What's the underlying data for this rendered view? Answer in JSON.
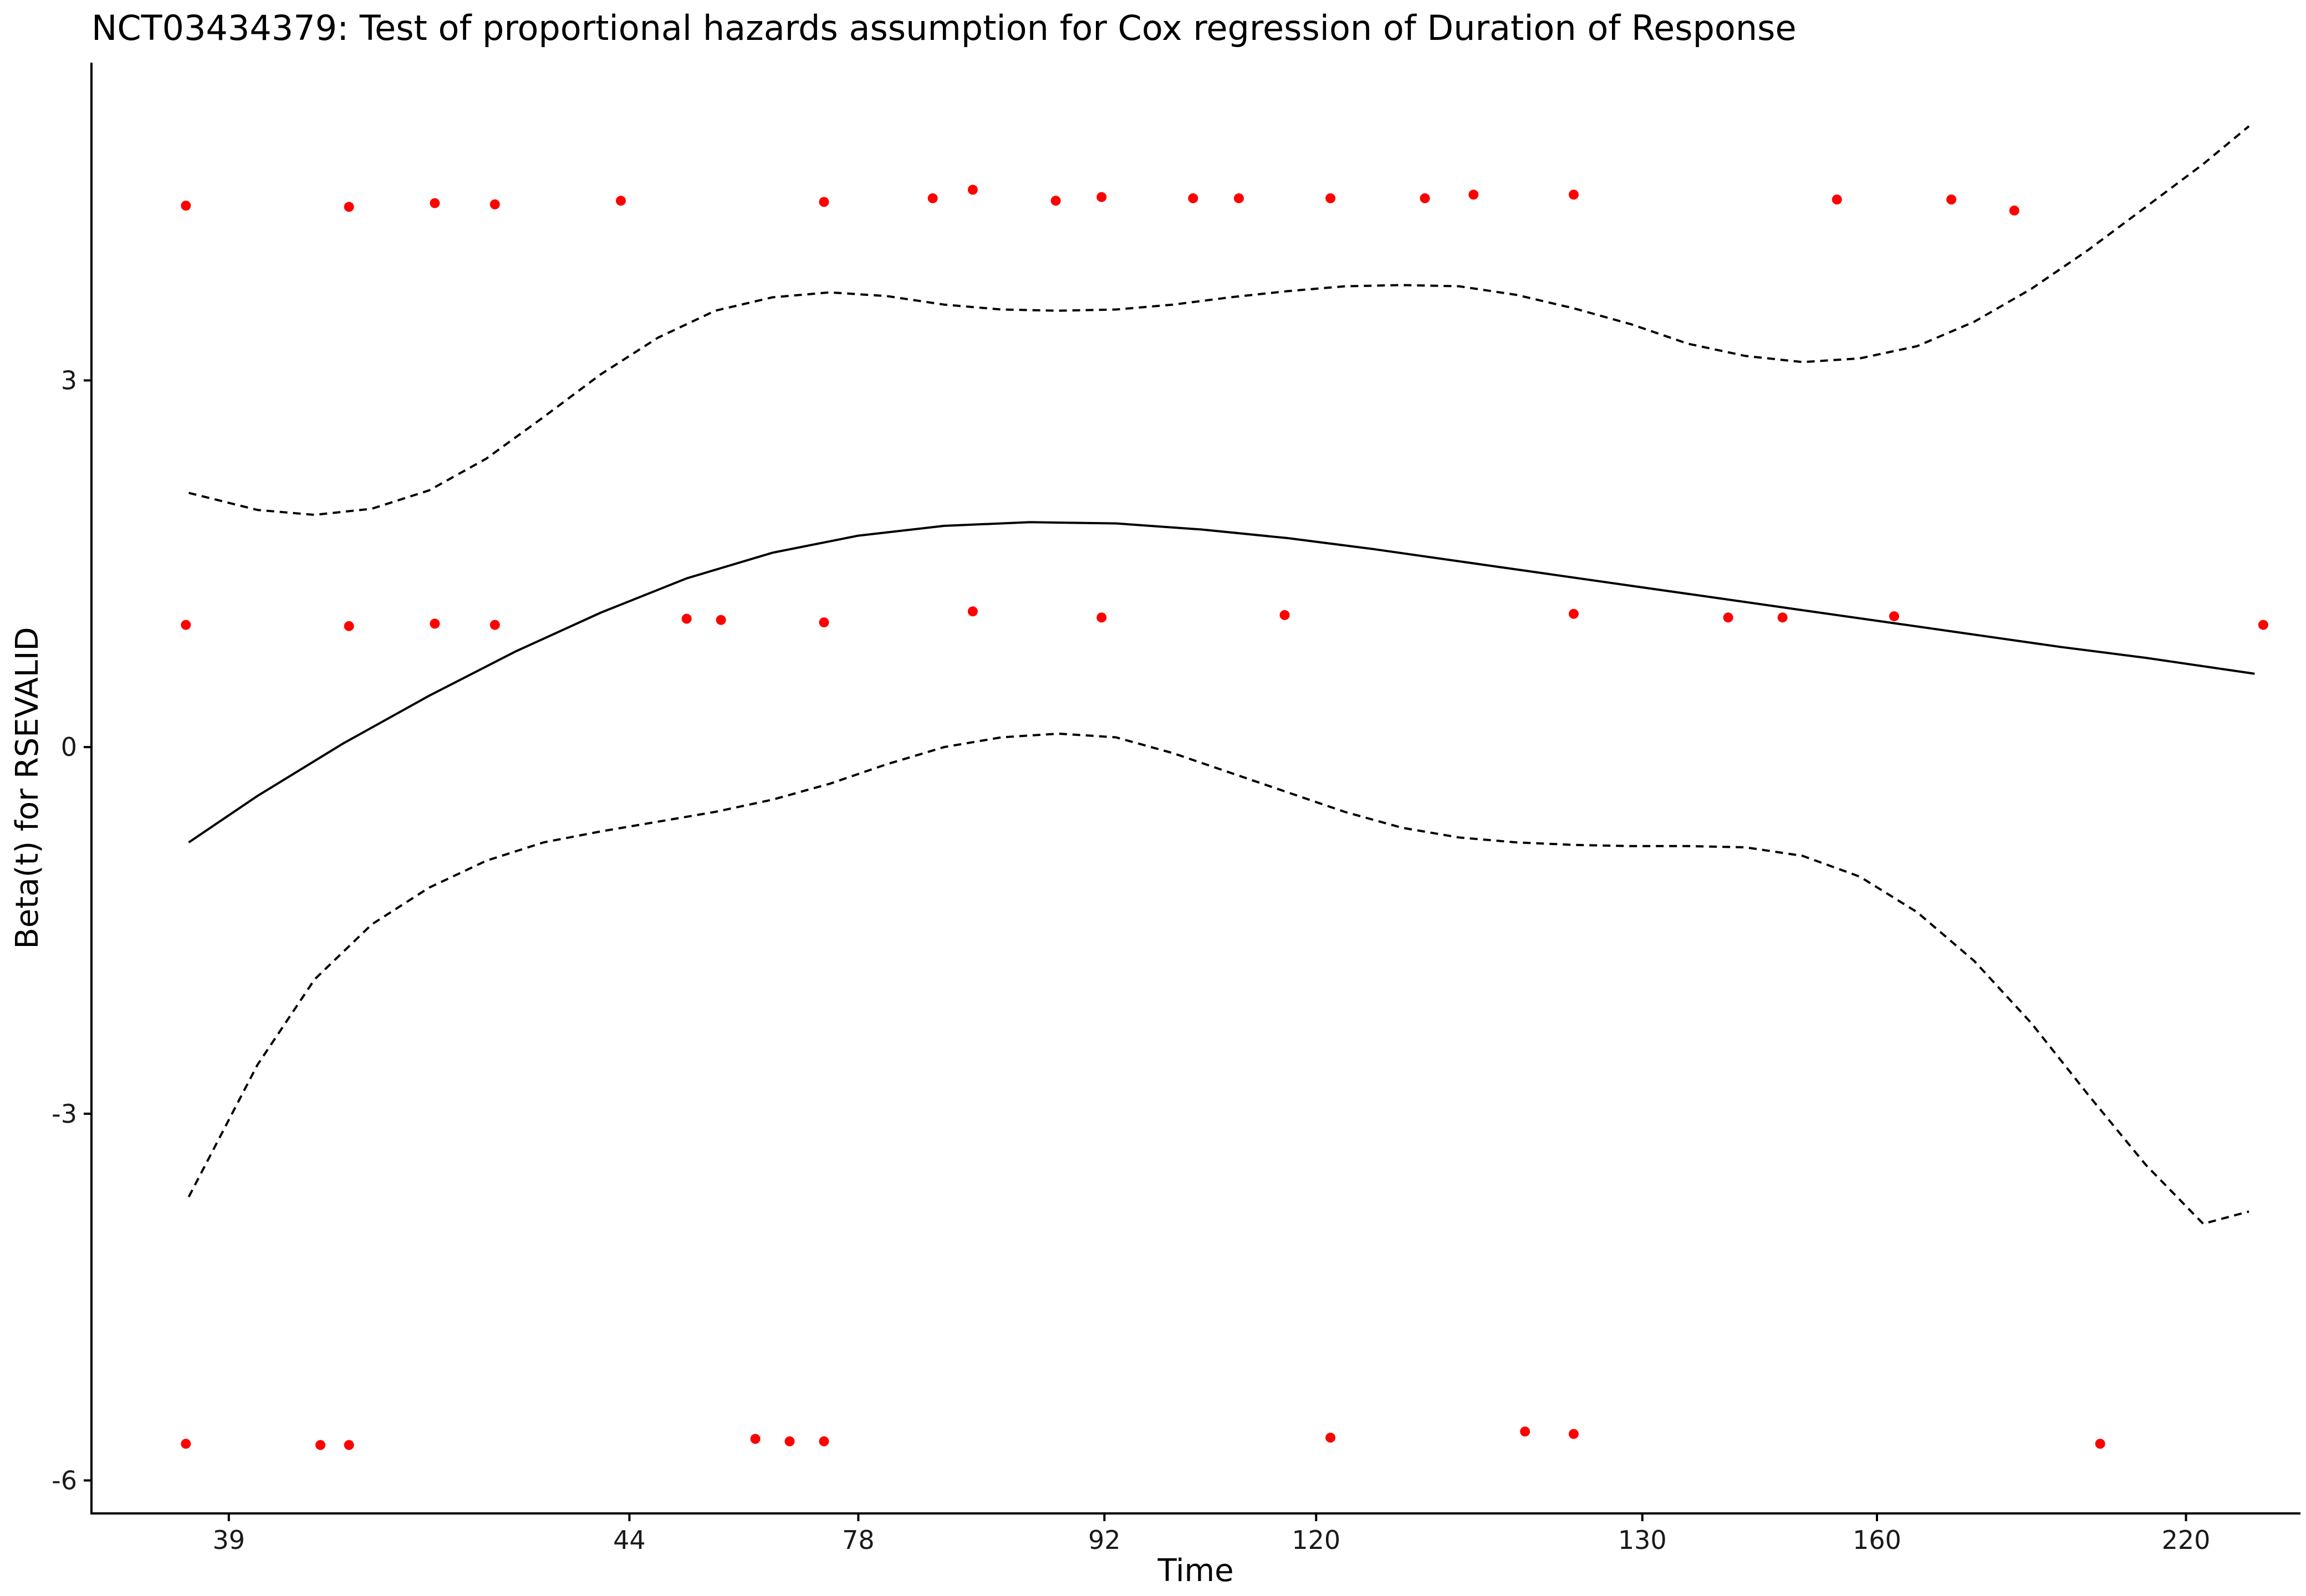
{
  "chart_data": {
    "type": "scatter",
    "title": "NCT03434379: Test of proportional hazards assumption for Cox regression of Duration of Response",
    "xlabel": "Time",
    "ylabel": "Beta(t) for RSEVALID",
    "xlim": [
      0.6,
      39.2
    ],
    "ylim": [
      -6.27,
      5.6
    ],
    "x_tick_positions": [
      3,
      10,
      14,
      18.3,
      22,
      27.7,
      31.8,
      37.2
    ],
    "x_tick_labels": [
      "39",
      "44",
      "78",
      "92",
      "120",
      "130",
      "160",
      "220"
    ],
    "y_ticks": [
      -6,
      -3,
      0,
      3
    ],
    "y_tick_labels": [
      "-6",
      "-3",
      "0",
      "3"
    ],
    "grid": false,
    "legend": "none",
    "point_color": "#ff0000",
    "line_color": "#000000",
    "series": [
      {
        "type": "points",
        "x": [
          2.25,
          5.1,
          6.6,
          7.65,
          9.85,
          13.4,
          15.3,
          16.0,
          17.45,
          18.25,
          19.85,
          20.65,
          22.25,
          23.9,
          24.75,
          26.5,
          31.1,
          33.1,
          34.2,
          2.25,
          5.1,
          6.6,
          7.65,
          11.0,
          11.6,
          13.4,
          16.0,
          18.25,
          21.45,
          26.5,
          29.2,
          30.15,
          32.1,
          38.55,
          2.25,
          4.6,
          5.1,
          12.2,
          12.8,
          13.4,
          22.25,
          25.65,
          26.5,
          35.7
        ],
        "y": [
          4.43,
          4.42,
          4.45,
          4.44,
          4.47,
          4.46,
          4.49,
          4.56,
          4.47,
          4.5,
          4.49,
          4.49,
          4.49,
          4.49,
          4.52,
          4.52,
          4.48,
          4.48,
          4.39,
          1.0,
          0.99,
          1.01,
          1.0,
          1.05,
          1.04,
          1.02,
          1.11,
          1.06,
          1.08,
          1.09,
          1.06,
          1.06,
          1.07,
          1.0,
          -5.7,
          -5.71,
          -5.71,
          -5.66,
          -5.68,
          -5.68,
          -5.65,
          -5.6,
          -5.62,
          -5.7
        ]
      },
      {
        "type": "line",
        "style": "solid",
        "x": [
          2.3,
          3.5,
          5.0,
          6.5,
          8.0,
          9.5,
          11.0,
          12.5,
          14.0,
          15.5,
          17.0,
          18.5,
          20.0,
          21.5,
          23.0,
          24.5,
          26.0,
          27.5,
          29.0,
          30.5,
          32.0,
          33.5,
          35.0,
          36.5,
          38.4
        ],
        "y": [
          -0.78,
          -0.4,
          0.03,
          0.42,
          0.78,
          1.1,
          1.38,
          1.59,
          1.73,
          1.81,
          1.84,
          1.83,
          1.78,
          1.71,
          1.62,
          1.52,
          1.42,
          1.32,
          1.22,
          1.12,
          1.02,
          0.92,
          0.82,
          0.73,
          0.6
        ]
      },
      {
        "type": "line",
        "style": "dashed",
        "x": [
          2.3,
          3.5,
          4.5,
          5.5,
          6.5,
          7.5,
          8.5,
          9.5,
          10.5,
          11.5,
          12.5,
          13.5,
          14.5,
          15.5,
          16.5,
          17.5,
          18.5,
          19.5,
          20.5,
          21.5,
          22.5,
          23.5,
          24.5,
          25.5,
          26.5,
          27.5,
          28.5,
          29.5,
          30.5,
          31.5,
          32.5,
          33.5,
          34.5,
          35.5,
          36.5,
          37.5,
          38.3
        ],
        "y": [
          2.08,
          1.94,
          1.9,
          1.95,
          2.1,
          2.36,
          2.7,
          3.05,
          3.35,
          3.57,
          3.68,
          3.72,
          3.69,
          3.62,
          3.58,
          3.57,
          3.58,
          3.62,
          3.68,
          3.73,
          3.77,
          3.78,
          3.77,
          3.7,
          3.59,
          3.46,
          3.3,
          3.2,
          3.15,
          3.18,
          3.28,
          3.48,
          3.75,
          4.07,
          4.42,
          4.77,
          5.08
        ]
      },
      {
        "type": "line",
        "style": "dashed",
        "x": [
          2.3,
          3.5,
          4.5,
          5.5,
          6.5,
          7.5,
          8.5,
          9.5,
          10.5,
          11.5,
          12.5,
          13.5,
          14.5,
          15.5,
          16.5,
          17.5,
          18.5,
          19.5,
          20.5,
          21.5,
          22.5,
          23.5,
          24.5,
          25.5,
          26.5,
          27.5,
          28.5,
          29.5,
          30.5,
          31.5,
          32.5,
          33.5,
          34.5,
          35.5,
          36.5,
          37.5,
          38.3
        ],
        "y": [
          -3.68,
          -2.6,
          -1.9,
          -1.45,
          -1.15,
          -0.93,
          -0.78,
          -0.69,
          -0.61,
          -0.53,
          -0.43,
          -0.3,
          -0.14,
          0.0,
          0.08,
          0.11,
          0.08,
          -0.05,
          -0.21,
          -0.37,
          -0.53,
          -0.66,
          -0.74,
          -0.78,
          -0.8,
          -0.81,
          -0.81,
          -0.82,
          -0.89,
          -1.06,
          -1.35,
          -1.75,
          -2.26,
          -2.85,
          -3.42,
          -3.9,
          -3.8
        ]
      }
    ]
  }
}
